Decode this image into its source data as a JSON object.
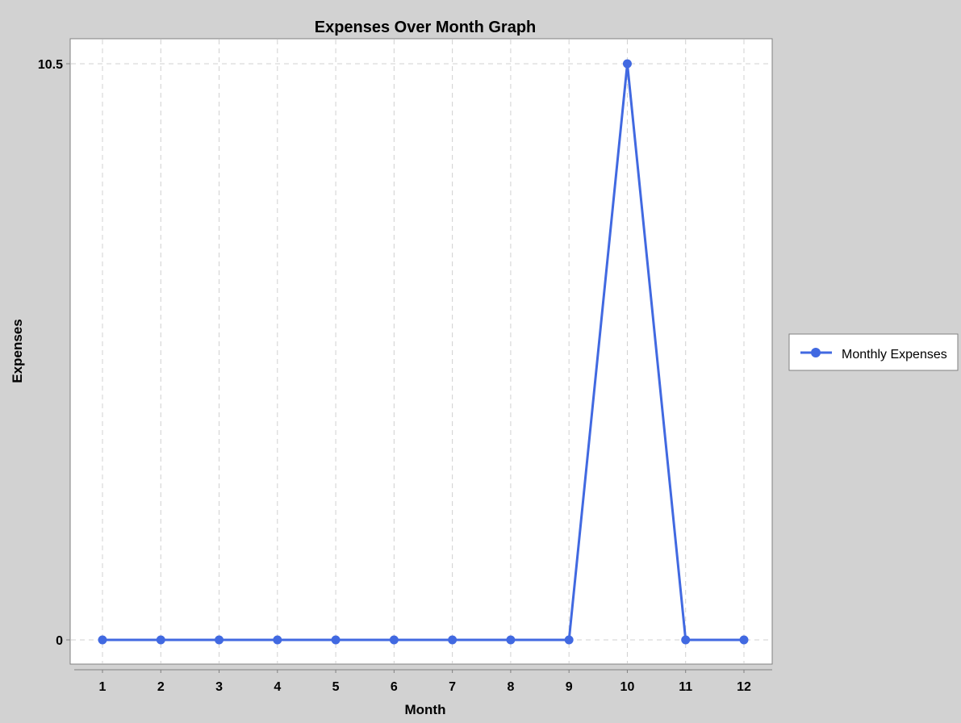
{
  "chart_data": {
    "type": "line",
    "title": "Expenses Over Month Graph",
    "xlabel": "Month",
    "ylabel": "Expenses",
    "x": [
      1,
      2,
      3,
      4,
      5,
      6,
      7,
      8,
      9,
      10,
      11,
      12
    ],
    "x_tick_labels": [
      "1",
      "2",
      "3",
      "4",
      "5",
      "6",
      "7",
      "8",
      "9",
      "10",
      "11",
      "12"
    ],
    "y_ticks": [
      0,
      10.5
    ],
    "y_tick_labels": [
      "0",
      "10.5"
    ],
    "ylim": [
      0,
      10.5
    ],
    "xlim": [
      1,
      12
    ],
    "grid": true,
    "legend_position": "right",
    "series": [
      {
        "name": "Monthly Expenses",
        "values": [
          0,
          0,
          0,
          0,
          0,
          0,
          0,
          0,
          0,
          10.5,
          0,
          0
        ],
        "color": "#4169e1"
      }
    ]
  }
}
